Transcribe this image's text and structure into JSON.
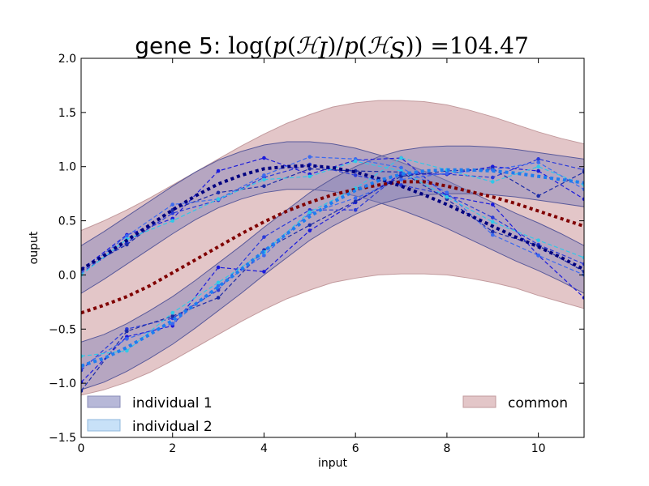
{
  "chart_data": {
    "type": "line",
    "title_prefix": "gene 5: ",
    "title_math": [
      "log(",
      "p",
      "(",
      "ℋ",
      "I",
      ")/",
      "p",
      "(",
      "ℋ",
      "S",
      "))",
      " =104.47"
    ],
    "xlabel": "input",
    "ylabel": "ouput",
    "xlim": [
      0,
      11
    ],
    "ylim": [
      -1.5,
      2.0
    ],
    "xticks": [
      "0",
      "2",
      "4",
      "6",
      "8",
      "10"
    ],
    "xtick_values": [
      0,
      2,
      4,
      6,
      8,
      10
    ],
    "yticks": [
      "−1.5",
      "−1.0",
      "−0.5",
      "0.0",
      "0.5",
      "1.0",
      "1.5",
      "2.0"
    ],
    "ytick_values": [
      -1.5,
      -1.0,
      -0.5,
      0.0,
      0.5,
      1.0,
      1.5,
      2.0
    ],
    "grid": false,
    "legend": {
      "left_placement": "lower-left",
      "right_placement": "lower-right",
      "entries": [
        {
          "label": "individual 1",
          "color": "#b7b8d8",
          "edge": "#8a8cb8"
        },
        {
          "label": "individual 2",
          "color": "#c8e1f8",
          "edge": "#8fb8dc"
        },
        {
          "label": "common",
          "color": "#e3c6c8",
          "edge": "#c29a9d"
        }
      ]
    },
    "bands": [
      {
        "name": "common",
        "fill": "#e3c6c8",
        "edge": "#c29a9d",
        "x": [
          0,
          0.5,
          1,
          1.5,
          2,
          2.5,
          3,
          3.5,
          4,
          4.5,
          5,
          5.5,
          6,
          6.5,
          7,
          7.5,
          8,
          8.5,
          9,
          9.5,
          10,
          10.5,
          11
        ],
        "upper": [
          0.41,
          0.5,
          0.6,
          0.71,
          0.83,
          0.95,
          1.07,
          1.19,
          1.3,
          1.4,
          1.48,
          1.55,
          1.59,
          1.61,
          1.61,
          1.6,
          1.57,
          1.52,
          1.46,
          1.39,
          1.32,
          1.26,
          1.21
        ],
        "lower": [
          -1.11,
          -1.06,
          -0.99,
          -0.9,
          -0.79,
          -0.67,
          -0.55,
          -0.43,
          -0.32,
          -0.22,
          -0.14,
          -0.07,
          -0.03,
          0.0,
          0.01,
          0.01,
          0.0,
          -0.03,
          -0.07,
          -0.12,
          -0.19,
          -0.25,
          -0.31
        ]
      },
      {
        "name": "individual 1",
        "fill": "#7f7fb8",
        "edge": "#5a5a9a",
        "x": [
          0,
          0.5,
          1,
          1.5,
          2,
          2.5,
          3,
          3.5,
          4,
          4.5,
          5,
          5.5,
          6,
          6.5,
          7,
          7.5,
          8,
          8.5,
          9,
          9.5,
          10,
          10.5,
          11
        ],
        "upper": [
          0.27,
          0.4,
          0.54,
          0.68,
          0.82,
          0.95,
          1.06,
          1.14,
          1.2,
          1.23,
          1.23,
          1.21,
          1.17,
          1.11,
          1.04,
          0.96,
          0.87,
          0.77,
          0.67,
          0.57,
          0.48,
          0.38,
          0.27
        ],
        "lower": [
          -0.17,
          -0.04,
          0.1,
          0.24,
          0.38,
          0.51,
          0.62,
          0.7,
          0.76,
          0.79,
          0.79,
          0.77,
          0.73,
          0.67,
          0.6,
          0.52,
          0.43,
          0.33,
          0.23,
          0.13,
          0.04,
          -0.06,
          -0.17
        ]
      },
      {
        "name": "individual 2",
        "fill": "#7f7fb8",
        "edge": "#5a5a9a",
        "x": [
          0,
          0.5,
          1,
          1.5,
          2,
          2.5,
          3,
          3.5,
          4,
          4.5,
          5,
          5.5,
          6,
          6.5,
          7,
          7.5,
          8,
          8.5,
          9,
          9.5,
          10,
          10.5,
          11
        ],
        "upper": [
          -0.62,
          -0.55,
          -0.45,
          -0.33,
          -0.2,
          -0.05,
          0.11,
          0.27,
          0.44,
          0.6,
          0.76,
          0.89,
          1.0,
          1.09,
          1.15,
          1.18,
          1.19,
          1.19,
          1.18,
          1.16,
          1.13,
          1.1,
          1.07
        ],
        "lower": [
          -1.06,
          -0.99,
          -0.89,
          -0.77,
          -0.64,
          -0.49,
          -0.33,
          -0.17,
          0.0,
          0.16,
          0.32,
          0.45,
          0.56,
          0.65,
          0.71,
          0.74,
          0.75,
          0.75,
          0.74,
          0.72,
          0.69,
          0.66,
          0.63
        ]
      }
    ],
    "mean_curves": [
      {
        "name": "common mean",
        "color": "#800000",
        "x": [
          0,
          0.5,
          1,
          1.5,
          2,
          2.5,
          3,
          3.5,
          4,
          4.5,
          5,
          5.5,
          6,
          6.5,
          7,
          7.5,
          8,
          8.5,
          9,
          9.5,
          10,
          10.5,
          11
        ],
        "y": [
          -0.35,
          -0.28,
          -0.2,
          -0.1,
          0.02,
          0.14,
          0.26,
          0.38,
          0.49,
          0.59,
          0.67,
          0.74,
          0.79,
          0.83,
          0.86,
          0.86,
          0.82,
          0.77,
          0.72,
          0.66,
          0.59,
          0.52,
          0.45
        ]
      },
      {
        "name": "individual 1 mean",
        "color": "#000080",
        "x": [
          0,
          0.5,
          1,
          1.5,
          2,
          2.5,
          3,
          3.5,
          4,
          4.5,
          5,
          5.5,
          6,
          6.5,
          7,
          7.5,
          8,
          8.5,
          9,
          9.5,
          10,
          10.5,
          11
        ],
        "y": [
          0.05,
          0.18,
          0.32,
          0.46,
          0.6,
          0.73,
          0.84,
          0.92,
          0.98,
          1.0,
          1.01,
          0.99,
          0.95,
          0.89,
          0.82,
          0.74,
          0.65,
          0.55,
          0.45,
          0.35,
          0.26,
          0.16,
          0.05
        ]
      },
      {
        "name": "individual 2 mean",
        "color": "#1e7df0",
        "x": [
          0,
          0.5,
          1,
          1.5,
          2,
          2.5,
          3,
          3.5,
          4,
          4.5,
          5,
          5.5,
          6,
          6.5,
          7,
          7.5,
          8,
          8.5,
          9,
          9.5,
          10,
          10.5,
          11
        ],
        "y": [
          -0.84,
          -0.77,
          -0.67,
          -0.55,
          -0.42,
          -0.27,
          -0.11,
          0.05,
          0.22,
          0.38,
          0.54,
          0.67,
          0.78,
          0.87,
          0.93,
          0.96,
          0.97,
          0.97,
          0.96,
          0.94,
          0.91,
          0.88,
          0.85
        ]
      }
    ],
    "replicate_series": [
      {
        "color": "#1a1adc",
        "x": [
          0,
          1,
          2,
          3,
          4,
          5,
          6,
          7,
          8,
          9,
          10,
          11
        ],
        "y": [
          0.05,
          0.37,
          0.52,
          0.96,
          1.08,
          0.93,
          1.06,
          1.08,
          0.73,
          0.65,
          0.18,
          -0.21
        ]
      },
      {
        "color": "#2a3ad8",
        "x": [
          0,
          1,
          2,
          3,
          4,
          5,
          6,
          7,
          8,
          9,
          10,
          11
        ],
        "y": [
          0.02,
          0.3,
          0.57,
          0.69,
          0.9,
          1.02,
          0.92,
          0.83,
          0.74,
          0.53,
          0.28,
          0.1
        ]
      },
      {
        "color": "#1a2aa8",
        "x": [
          0,
          1,
          2,
          3,
          4,
          5,
          6,
          7,
          8,
          9,
          10,
          11
        ],
        "y": [
          0.05,
          0.28,
          0.6,
          0.76,
          0.82,
          0.98,
          0.96,
          0.95,
          0.7,
          0.4,
          0.27,
          0.03
        ]
      },
      {
        "color": "#3a6af0",
        "x": [
          0,
          1,
          2,
          3,
          4,
          5,
          6,
          7,
          8,
          9,
          10,
          11
        ],
        "y": [
          0.03,
          0.36,
          0.65,
          0.7,
          0.92,
          1.09,
          1.07,
          0.99,
          0.76,
          0.37,
          0.18,
          0.0
        ]
      },
      {
        "color": "#30c8e8",
        "x": [
          0,
          1,
          2,
          3,
          4,
          5,
          6,
          7,
          8,
          9,
          10,
          11
        ],
        "y": [
          0.0,
          0.33,
          0.5,
          0.7,
          0.88,
          0.91,
          1.05,
          0.96,
          0.72,
          0.49,
          0.32,
          0.16
        ]
      },
      {
        "color": "#1a1adc",
        "x": [
          0,
          1,
          2,
          3,
          4,
          5,
          6,
          7,
          8,
          9,
          10,
          11
        ],
        "y": [
          -0.99,
          -0.57,
          -0.47,
          0.07,
          0.03,
          0.41,
          0.67,
          0.93,
          0.93,
          1.0,
          0.96,
          0.7
        ]
      },
      {
        "color": "#2a3ad8",
        "x": [
          0,
          1,
          2,
          3,
          4,
          5,
          6,
          7,
          8,
          9,
          10,
          11
        ],
        "y": [
          -0.88,
          -0.5,
          -0.4,
          -0.14,
          0.35,
          0.6,
          0.6,
          0.94,
          0.93,
          0.9,
          1.07,
          0.97
        ]
      },
      {
        "color": "#1a2aa8",
        "x": [
          0,
          1,
          2,
          3,
          4,
          5,
          6,
          7,
          8,
          9,
          10,
          11
        ],
        "y": [
          -1.07,
          -0.52,
          -0.38,
          -0.21,
          0.23,
          0.46,
          0.68,
          0.91,
          0.96,
          0.98,
          0.73,
          0.95
        ]
      },
      {
        "color": "#3a6af0",
        "x": [
          0,
          1,
          2,
          3,
          4,
          5,
          6,
          7,
          8,
          9,
          10,
          11
        ],
        "y": [
          -0.85,
          -0.59,
          -0.45,
          -0.1,
          0.18,
          0.57,
          0.71,
          0.88,
          0.94,
          0.97,
          1.04,
          0.79
        ]
      },
      {
        "color": "#30c8e8",
        "x": [
          0,
          1,
          2,
          3,
          4,
          5,
          6,
          7,
          8,
          9,
          10,
          11
        ],
        "y": [
          -0.75,
          -0.7,
          -0.35,
          -0.07,
          0.21,
          0.58,
          0.8,
          1.08,
          0.97,
          0.86,
          1.0,
          0.83
        ]
      }
    ]
  }
}
